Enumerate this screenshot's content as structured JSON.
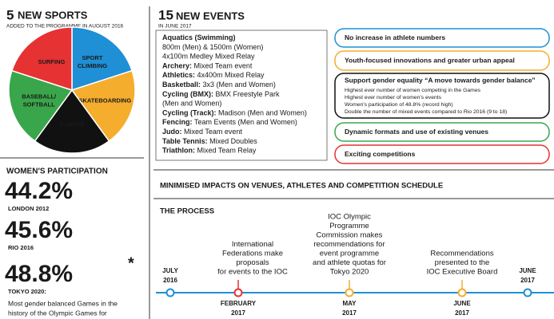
{
  "sports": {
    "count": "5",
    "title": "NEW SPORTS",
    "subtitle": "ADDED TO THE PROGRAMME IN AUGUST 2016",
    "slices": [
      {
        "label": [
          "SPORT",
          "CLIMBING"
        ],
        "color": "#1f8fd6"
      },
      {
        "label": [
          "SKATEBOARDING"
        ],
        "color": "#f5ad2e"
      },
      {
        "label": [
          "KARATE"
        ],
        "color": "#111111"
      },
      {
        "label": [
          "BASEBALL/",
          "SOFTBALL"
        ],
        "color": "#3aa64b"
      },
      {
        "label": [
          "SURFING"
        ],
        "color": "#e63232"
      }
    ]
  },
  "women": {
    "title": "WOMEN'S PARTICIPATION",
    "items": [
      {
        "value": "44.2%",
        "label": "LONDON 2012",
        "color": "#1f8fd6"
      },
      {
        "value": "45.6%",
        "label": "RIO 2016",
        "color": "#f5ad2e"
      },
      {
        "value": "48.8%",
        "mark": "*",
        "label": "TOKYO 2020:",
        "color": "#e63232"
      }
    ],
    "note": [
      "Most gender balanced Games in the",
      "history of the Olympic Games for"
    ]
  },
  "events": {
    "count": "15",
    "title": "NEW EVENTS",
    "subtitle": "IN JUNE 2017",
    "lines": [
      {
        "bold": "Aquatics (Swimming)"
      },
      {
        "text": "800m (Men) & 1500m (Women)"
      },
      {
        "text": "4x100m Medley Mixed Relay"
      },
      {
        "bold": "Archery:",
        "text": "Mixed Team event"
      },
      {
        "bold": "Athletics:",
        "text": "4x400m Mixed Relay"
      },
      {
        "bold": "Basketball:",
        "text": "3x3 (Men and Women)"
      },
      {
        "bold": "Cycling (BMX):",
        "text": "BMX Freestyle Park"
      },
      {
        "text": "(Men and Women)"
      },
      {
        "bold": "Cycling (Track):",
        "text": "Madison (Men and Women)"
      },
      {
        "bold": "Fencing:",
        "text": "Team Events (Men and Women)"
      },
      {
        "bold": "Judo:",
        "text": "Mixed Team event"
      },
      {
        "bold": "Table Tennis:",
        "text": "Mixed Doubles"
      },
      {
        "bold": "Triathlon:",
        "text": "Mixed Team Relay"
      }
    ]
  },
  "goals": [
    {
      "title": "No increase in athlete numbers",
      "color": "#1f8fd6"
    },
    {
      "title": "Youth-focused innovations and greater urban appeal",
      "color": "#f5ad2e"
    },
    {
      "title": "Support gender equality “A move towards gender balance”",
      "color": "#111111",
      "lines": [
        "Highest ever number of women competing in the Games",
        "Highest ever number of women's events",
        "Women's participation of 48.8% (record high)",
        "Double the number of mixed events compared to Rio 2016 (9 to 18)"
      ]
    },
    {
      "title": "Dynamic formats and use of existing venues",
      "color": "#3aa64b"
    },
    {
      "title": "Exciting competitions",
      "color": "#e63232"
    }
  ],
  "impacts_title": "MINIMISED IMPACTS ON VENUES, ATHLETES AND COMPETITION SCHEDULE",
  "process": {
    "title": "THE PROCESS",
    "steps": [
      {
        "date": [
          "JULY",
          "2016"
        ],
        "color": "#1f8fd6"
      },
      {
        "date": [
          "FEBRUARY",
          "2017"
        ],
        "text": [
          "International",
          "Federations make",
          "proposals",
          "for events to the IOC"
        ],
        "color": "#e63232"
      },
      {
        "date": [
          "MAY",
          "2017"
        ],
        "text": [
          "IOC Olympic",
          "Programme",
          "Commission makes",
          "recommendations for",
          "event programme",
          "and athlete quotas for",
          "Tokyo 2020"
        ],
        "color": "#f5ad2e"
      },
      {
        "date": [
          "JUNE",
          "2017"
        ],
        "text": [
          "Recommendations",
          "presented to the",
          "IOC Executive Board"
        ],
        "color": "#f5ad2e"
      },
      {
        "date": [
          "JUNE",
          "2017"
        ],
        "color": "#1f8fd6"
      }
    ]
  }
}
